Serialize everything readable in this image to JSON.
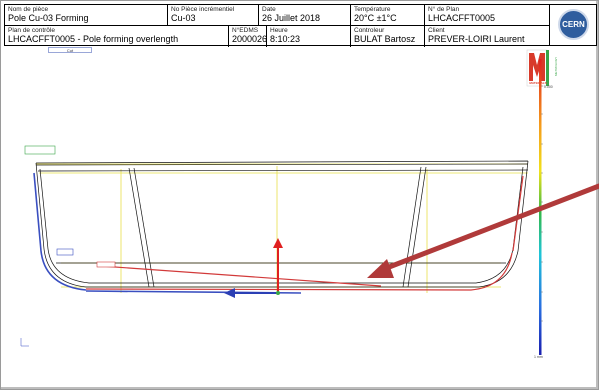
{
  "header": {
    "nom_piece_label": "Nom de pièce",
    "nom_piece_value": "Pole Cu-03 Forming",
    "piece_inc_label": "No Pièce incrémentiel",
    "piece_inc_value": "Cu-03",
    "date_label": "Date",
    "date_value": "26 Juillet 2018",
    "temperature_label": "Température",
    "temperature_value": "20°C ±1°C",
    "plan_no_label": "N° de Plan",
    "plan_no_value": "LHCACFFT0005",
    "plan_controle_label": "Plan de contrôle",
    "plan_controle_value": "LHCACFFT0005 - Pole forming overlength",
    "edms_label": "N°EDMS",
    "edms_value": "2000026",
    "heure_label": "Heure",
    "heure_value": "8:10:23",
    "controleur_label": "Controleur",
    "controleur_value": "BULAT Bartosz",
    "client_label": "Client",
    "client_value": "PREVER-LOIRI Laurent"
  },
  "logos": {
    "cern": "CERN",
    "materials": "MATERIALS",
    "metrology": "METROLOGY"
  },
  "small_tag": "Cut",
  "scale": {
    "max_label": "0.000",
    "min_label": "1 mm"
  },
  "colors": {
    "arrow": "#b03a3a",
    "x_axis": "#2b3fb5",
    "y_axis": "#e02020",
    "part_outline": "#111111",
    "guides": "#e8e04a",
    "surface_blue": "#3a4fc0",
    "surface_red": "#d23a3a"
  }
}
